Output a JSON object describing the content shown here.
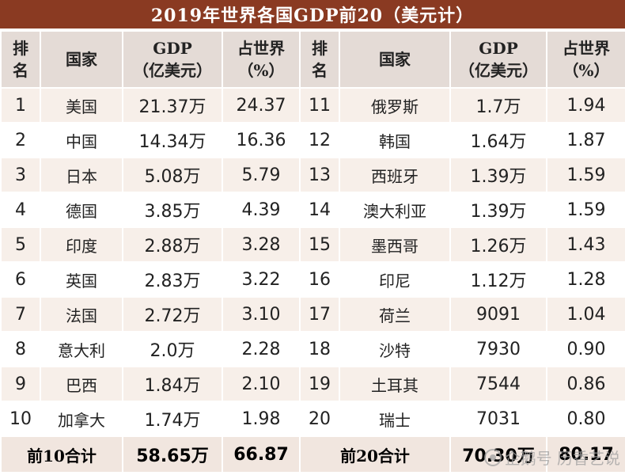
{
  "title": "2019年世界各国GDP前20（美元计）",
  "headers": {
    "rank": [
      "排",
      "名"
    ],
    "country": "国家",
    "gdp": [
      "GDP",
      "（亿美元）"
    ],
    "share": [
      "占世界",
      "（%）"
    ]
  },
  "rows": [
    {
      "left": {
        "rank": "1",
        "country": "美国",
        "gdp": "21.37万",
        "share": "24.37"
      },
      "right": {
        "rank": "11",
        "country": "俄罗斯",
        "gdp": "1.7万",
        "share": "1.94"
      }
    },
    {
      "left": {
        "rank": "2",
        "country": "中国",
        "gdp": "14.34万",
        "share": "16.36"
      },
      "right": {
        "rank": "12",
        "country": "韩国",
        "gdp": "1.64万",
        "share": "1.87"
      }
    },
    {
      "left": {
        "rank": "3",
        "country": "日本",
        "gdp": "5.08万",
        "share": "5.79"
      },
      "right": {
        "rank": "13",
        "country": "西班牙",
        "gdp": "1.39万",
        "share": "1.59"
      }
    },
    {
      "left": {
        "rank": "4",
        "country": "德国",
        "gdp": "3.85万",
        "share": "4.39"
      },
      "right": {
        "rank": "14",
        "country": "澳大利亚",
        "gdp": "1.39万",
        "share": "1.59"
      }
    },
    {
      "left": {
        "rank": "5",
        "country": "印度",
        "gdp": "2.88万",
        "share": "3.28"
      },
      "right": {
        "rank": "15",
        "country": "墨西哥",
        "gdp": "1.26万",
        "share": "1.43"
      }
    },
    {
      "left": {
        "rank": "6",
        "country": "英国",
        "gdp": "2.83万",
        "share": "3.22"
      },
      "right": {
        "rank": "16",
        "country": "印尼",
        "gdp": "1.12万",
        "share": "1.28"
      }
    },
    {
      "left": {
        "rank": "7",
        "country": "法国",
        "gdp": "2.72万",
        "share": "3.10"
      },
      "right": {
        "rank": "17",
        "country": "荷兰",
        "gdp": "9091",
        "share": "1.04"
      }
    },
    {
      "left": {
        "rank": "8",
        "country": "意大利",
        "gdp": "2.0万",
        "share": "2.28"
      },
      "right": {
        "rank": "18",
        "country": "沙特",
        "gdp": "7930",
        "share": "0.90"
      }
    },
    {
      "left": {
        "rank": "9",
        "country": "巴西",
        "gdp": "1.84万",
        "share": "2.10"
      },
      "right": {
        "rank": "19",
        "country": "土耳其",
        "gdp": "7544",
        "share": "0.86"
      }
    },
    {
      "left": {
        "rank": "10",
        "country": "加拿大",
        "gdp": "1.74万",
        "share": "1.98"
      },
      "right": {
        "rank": "20",
        "country": "瑞士",
        "gdp": "7031",
        "share": "0.80"
      }
    }
  ],
  "totals": {
    "left": {
      "label": "前10合计",
      "gdp": "58.65万",
      "share": "66.87"
    },
    "right": {
      "label": "前20合计",
      "gdp": "70.30万",
      "share": "80.17"
    }
  },
  "watermark": "企鹅号 历香艺说"
}
